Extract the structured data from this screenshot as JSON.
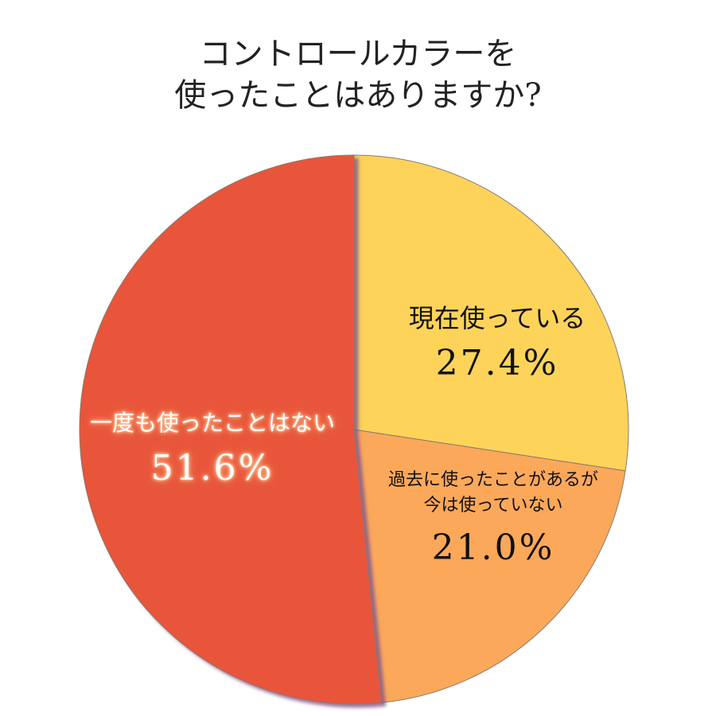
{
  "title": {
    "line1": "コントロールカラーを",
    "line2": "使ったことはありますか?"
  },
  "chart_data": {
    "type": "pie",
    "title": "コントロールカラーを使ったことはありますか?",
    "start": "12 o'clock, clockwise",
    "slices": [
      {
        "label": "現在使っている",
        "value": 27.4,
        "value_text": "27.4%",
        "color": "#fdd35a"
      },
      {
        "label_lines": [
          "過去に使ったことがあるが",
          "今は使っていない"
        ],
        "value": 21.0,
        "value_text": "21.0%",
        "color": "#fba85a"
      },
      {
        "label": "一度も使ったことはない",
        "value": 51.6,
        "value_text": "51.6%",
        "color": "#e8543b"
      }
    ]
  }
}
